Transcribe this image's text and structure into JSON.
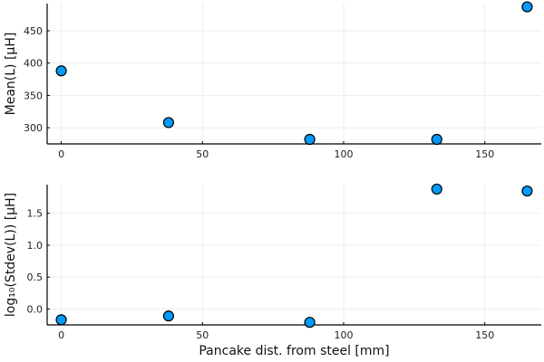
{
  "chart_data": [
    {
      "type": "scatter",
      "xlabel": "",
      "ylabel": "Mean(L) [µH]",
      "xlim": [
        -5,
        170
      ],
      "ylim": [
        275,
        492
      ],
      "xticks": [
        0,
        50,
        100,
        150
      ],
      "yticks": [
        300,
        350,
        400,
        450
      ],
      "grid": true,
      "legend": "none",
      "marker_color": "#009AF9",
      "x": [
        0,
        38,
        88,
        133,
        165
      ],
      "y": [
        388,
        308,
        282,
        282,
        487
      ]
    },
    {
      "type": "scatter",
      "xlabel": "Pancake dist. from steel [mm]",
      "ylabel": "log₁₀(Stdev(L)) [µH]",
      "xlim": [
        -5,
        170
      ],
      "ylim": [
        -0.25,
        1.95
      ],
      "xticks": [
        0,
        50,
        100,
        150
      ],
      "yticks": [
        0.0,
        0.5,
        1.0,
        1.5
      ],
      "ytick_labels": [
        "0.0",
        "0.5",
        "1.0",
        "1.5"
      ],
      "grid": true,
      "legend": "none",
      "marker_color": "#009AF9",
      "x": [
        0,
        38,
        88,
        133,
        165
      ],
      "y": [
        -0.17,
        -0.11,
        -0.21,
        1.88,
        1.85
      ]
    }
  ]
}
